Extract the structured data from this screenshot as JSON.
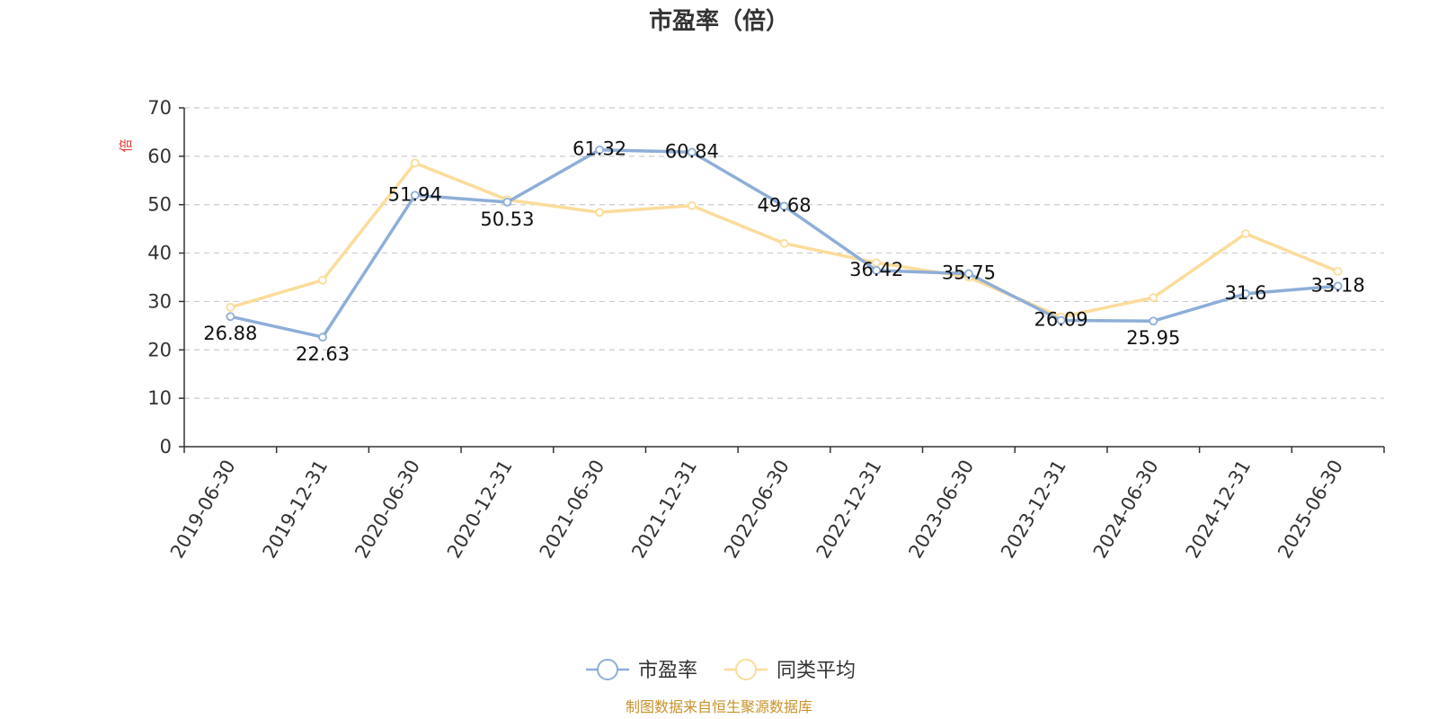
{
  "chart_data": {
    "type": "line",
    "title": "市盈率（倍）",
    "ylabel": "倍",
    "ylim": [
      0,
      70
    ],
    "yticks": [
      0,
      10,
      20,
      30,
      40,
      50,
      60,
      70
    ],
    "grid": true,
    "legend_position": "bottom-center",
    "categories": [
      "2019-06-30",
      "2019-12-31",
      "2020-06-30",
      "2020-12-31",
      "2021-06-30",
      "2021-12-31",
      "2022-06-30",
      "2022-12-31",
      "2023-06-30",
      "2023-12-31",
      "2024-06-30",
      "2024-12-31",
      "2025-06-30"
    ],
    "series": [
      {
        "name": "市盈率",
        "color": "#8eaed8",
        "show_labels": true,
        "values": [
          26.88,
          22.63,
          51.94,
          50.53,
          61.32,
          60.84,
          49.68,
          36.42,
          35.75,
          26.09,
          25.95,
          31.6,
          33.18
        ]
      },
      {
        "name": "同类平均",
        "color": "#fbdc9a",
        "show_labels": false,
        "values": [
          28.8,
          34.4,
          58.6,
          51.0,
          48.4,
          49.8,
          42.0,
          38.0,
          35.0,
          26.8,
          30.8,
          44.0,
          36.2
        ]
      }
    ],
    "source": "制图数据来自恒生聚源数据库"
  }
}
